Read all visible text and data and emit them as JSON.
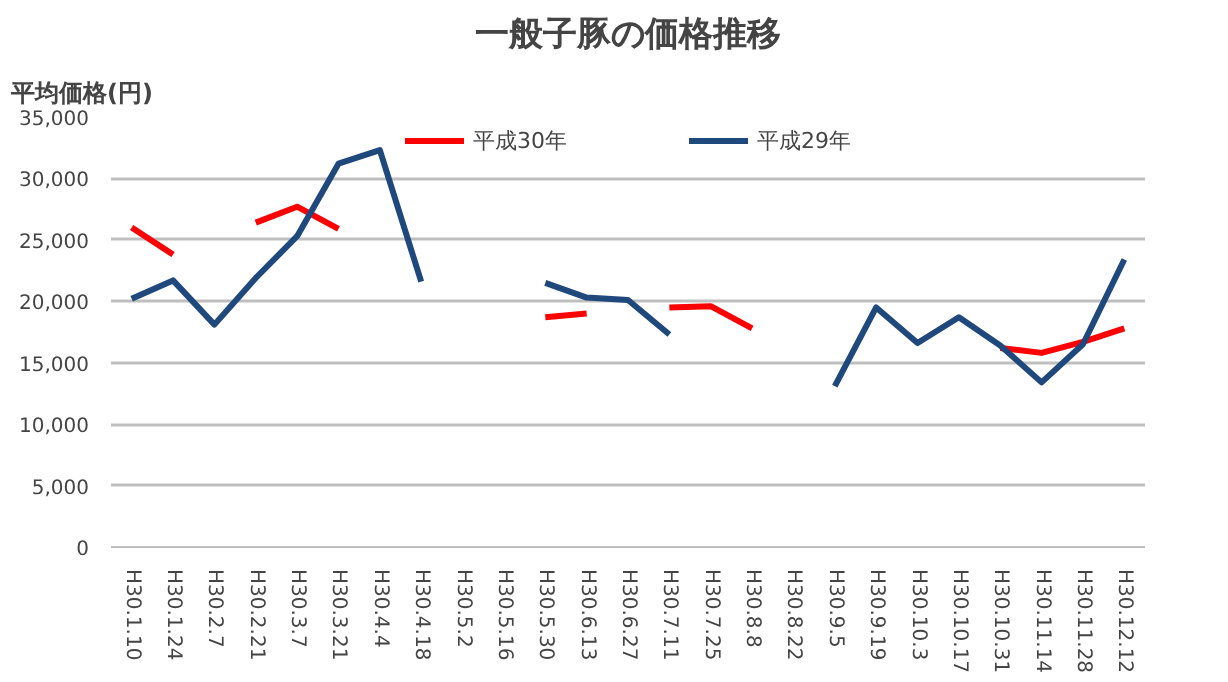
{
  "chart_data": {
    "type": "line",
    "title": "一般子豚の価格推移",
    "ylabel": "平均価格(円)",
    "categories": [
      "H30.1.10",
      "H30.1.24",
      "H30.2.7",
      "H30.2.21",
      "H30.3.7",
      "H30.3.21",
      "H30.4.4",
      "H30.4.18",
      "H30.5.2",
      "H30.5.16",
      "H30.5.30",
      "H30.6.13",
      "H30.6.27",
      "H30.7.11",
      "H30.7.25",
      "H30.8.8",
      "H30.8.22",
      "H30.9.5",
      "H30.9.19",
      "H30.10.3",
      "H30.10.17",
      "H30.10.31",
      "H30.11.14",
      "H30.11.28",
      "H30.12.12"
    ],
    "series": [
      {
        "name": "平成30年",
        "color": "#ff0000",
        "values": [
          26000,
          23800,
          null,
          26400,
          27700,
          25900,
          null,
          null,
          null,
          null,
          18700,
          19000,
          null,
          19500,
          19600,
          17800,
          null,
          null,
          null,
          null,
          null,
          16200,
          15800,
          16700,
          17800
        ]
      },
      {
        "name": "平成29年",
        "color": "#1f497d",
        "values": [
          20200,
          21700,
          18100,
          21900,
          25300,
          31200,
          32300,
          21600,
          null,
          null,
          21500,
          20300,
          20100,
          17300,
          null,
          null,
          null,
          13100,
          19500,
          16600,
          18700,
          16400,
          13400,
          16500,
          23400
        ]
      }
    ],
    "ylim": [
      0,
      35000
    ],
    "yticks": [
      {
        "value": 0,
        "label": "0"
      },
      {
        "value": 5000,
        "label": "5,000"
      },
      {
        "value": 10000,
        "label": "10,000"
      },
      {
        "value": 15000,
        "label": "15,000"
      },
      {
        "value": 20000,
        "label": "20,000"
      },
      {
        "value": 25000,
        "label": "25,000"
      },
      {
        "value": 30000,
        "label": "30,000"
      },
      {
        "value": 35000,
        "label": "35,000"
      }
    ],
    "grid": "y",
    "legend": "top"
  }
}
